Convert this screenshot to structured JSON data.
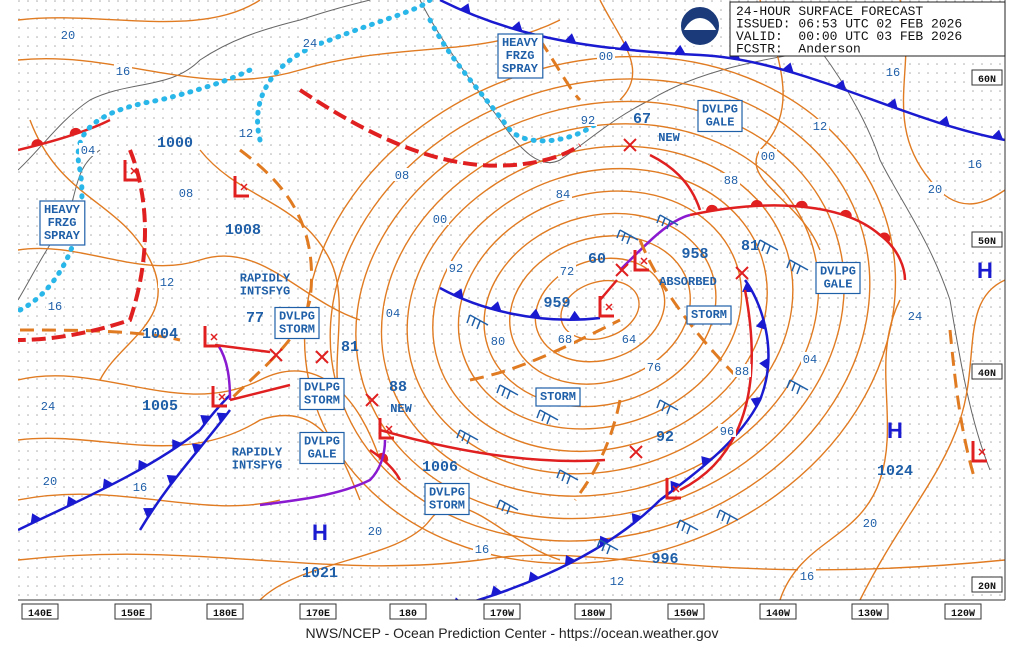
{
  "header": {
    "lines": [
      "24-HOUR SURFACE FORECAST",
      "ISSUED: 06:53 UTC 02 FEB 2026",
      "VALID:  00:00 UTC 03 FEB 2026",
      "FCSTR:  Anderson"
    ]
  },
  "footer": "NWS/NCEP - Ocean Prediction Center - https://ocean.weather.gov",
  "latitude_labels": [
    "60N",
    "50N",
    "40N",
    "20N"
  ],
  "longitude_labels": [
    "140E",
    "150E",
    "180E",
    "170E",
    "180",
    "170W",
    "180W",
    "150W",
    "140W",
    "130W",
    "120W"
  ],
  "high_centers": [
    {
      "symbol": "H"
    },
    {
      "symbol": "H",
      "pressure": "1024"
    },
    {
      "symbol": "H",
      "pressure": "1021"
    }
  ],
  "low_labels": [
    "1000",
    "1008",
    "1004",
    "1005",
    "1006",
    "958",
    "959",
    "996",
    "67",
    "81",
    "60",
    "77",
    "81",
    "88",
    "92"
  ],
  "boxed_warnings": [
    {
      "lines": [
        "HEAVY",
        "FRZG",
        "SPRAY"
      ]
    },
    {
      "lines": [
        "HEAVY",
        "FRZG",
        "SPRAY"
      ]
    },
    {
      "lines": [
        "DVLPG",
        "GALE"
      ]
    },
    {
      "lines": [
        "DVLPG",
        "GALE"
      ]
    },
    {
      "lines": [
        "DVLPG",
        "STORM"
      ]
    },
    {
      "lines": [
        "DVLPG",
        "STORM"
      ]
    },
    {
      "lines": [
        "DVLPG",
        "GALE"
      ]
    },
    {
      "lines": [
        "DVLPG",
        "STORM"
      ]
    },
    {
      "lines": [
        "STORM"
      ]
    },
    {
      "lines": [
        "STORM"
      ]
    }
  ],
  "notes": [
    {
      "lines": [
        "RAPIDLY",
        "INTSFYG"
      ]
    },
    {
      "lines": [
        "RAPIDLY",
        "INTSFYG"
      ]
    },
    {
      "lines": [
        "NEW"
      ]
    },
    {
      "lines": [
        "NEW"
      ]
    },
    {
      "lines": [
        "ABSORBED"
      ]
    }
  ],
  "isobar_labels": [
    "20",
    "16",
    "24",
    "12",
    "04",
    "08",
    "12",
    "16",
    "24",
    "20",
    "16",
    "20",
    "16",
    "12",
    "16",
    "20",
    "24",
    "04",
    "88",
    "96",
    "92",
    "84",
    "00",
    "08",
    "04",
    "92",
    "80",
    "72",
    "68",
    "64",
    "76",
    "88",
    "00",
    "12",
    "16",
    "20",
    "16",
    "00"
  ]
}
